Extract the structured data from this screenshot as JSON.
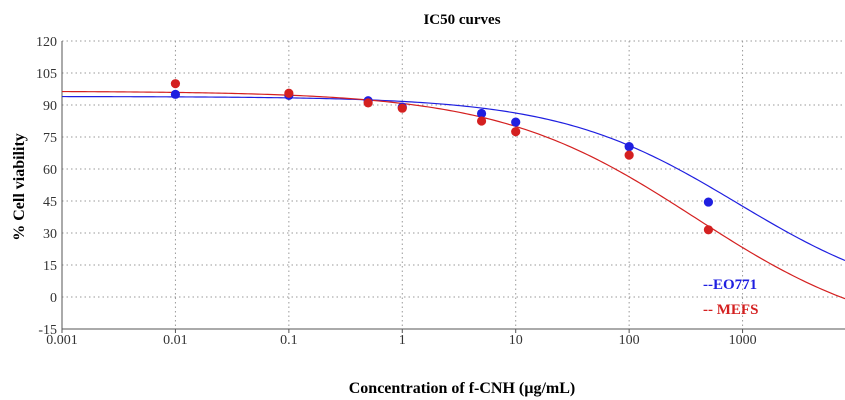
{
  "chart_data": {
    "type": "scatter",
    "title": "IC50 curves",
    "xlabel": "Concentration of f-CNH (µg/mL)",
    "ylabel": "% Cell viability",
    "xscale": "log",
    "xlim": [
      0.001,
      8000
    ],
    "ylim": [
      -15,
      120
    ],
    "xticks": [
      "0.001",
      "0.01",
      "0.1",
      "1",
      "10",
      "100",
      "1000"
    ],
    "xtick_values": [
      0.001,
      0.01,
      0.1,
      1,
      10,
      100,
      1000
    ],
    "yticks": [
      120,
      105,
      90,
      75,
      60,
      45,
      30,
      15,
      0,
      -15
    ],
    "grid": true,
    "legend_position": "bottom-right",
    "series": [
      {
        "name": "--EO771",
        "color": "#1f1fe0",
        "x": [
          0.01,
          0.1,
          0.5,
          1,
          5,
          10,
          100,
          500
        ],
        "y": [
          95,
          94.5,
          92,
          89,
          86,
          82,
          70.5,
          44.5
        ],
        "fit": {
          "top": 94,
          "bottom": -6,
          "ic50": 900,
          "hill": 0.55
        }
      },
      {
        "name": "-- MEFS",
        "color": "#d42020",
        "x": [
          0.01,
          0.1,
          0.5,
          1,
          5,
          10,
          100,
          500
        ],
        "y": [
          100,
          95.5,
          91,
          88.5,
          82.5,
          77.5,
          66.5,
          31.5
        ],
        "fit": {
          "top": 96.5,
          "bottom": -22,
          "ic50": 380,
          "hill": 0.5
        }
      }
    ]
  }
}
